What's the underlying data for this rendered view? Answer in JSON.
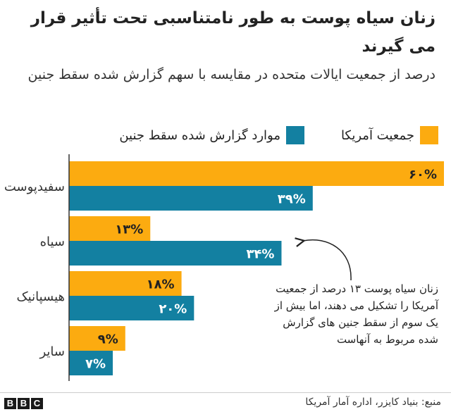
{
  "chart_data": {
    "type": "bar",
    "orientation": "horizontal",
    "title": "زنان سیاه پوست به طور نامتناسبی تحت تأثیر قرار می گیرند",
    "subtitle": "درصد از جمعیت ایالات متحده در مقایسه با سهم گزارش شده سقط جنین",
    "categories": [
      "سفیدپوست",
      "سیاه",
      "هیسپانیک",
      "سایر"
    ],
    "series": [
      {
        "name": "جمعیت آمریکا",
        "color": "#fcab10",
        "values": [
          60,
          13,
          18,
          9
        ],
        "labels": [
          "۶۰%",
          "۱۳%",
          "۱۸%",
          "۹%"
        ]
      },
      {
        "name": "موارد گزارش شده سقط جنین",
        "color": "#1380a1",
        "values": [
          39,
          34,
          20,
          7
        ],
        "labels": [
          "۳۹%",
          "۳۴%",
          "۲۰%",
          "۷%"
        ]
      }
    ],
    "xlim": [
      0,
      60
    ],
    "grid": false,
    "legend_position": "top",
    "annotation": "زنان سیاه پوست ۱۳ درصد از جمعیت آمریکا را تشکیل می دهند، اما بیش از یک سوم از سقط جنین های گزارش شده مربوط به آنهاست"
  },
  "footer": {
    "source": "منبع: بنیاد کایزر، اداره آمار آمریکا",
    "logo": [
      "B",
      "B",
      "C"
    ]
  }
}
